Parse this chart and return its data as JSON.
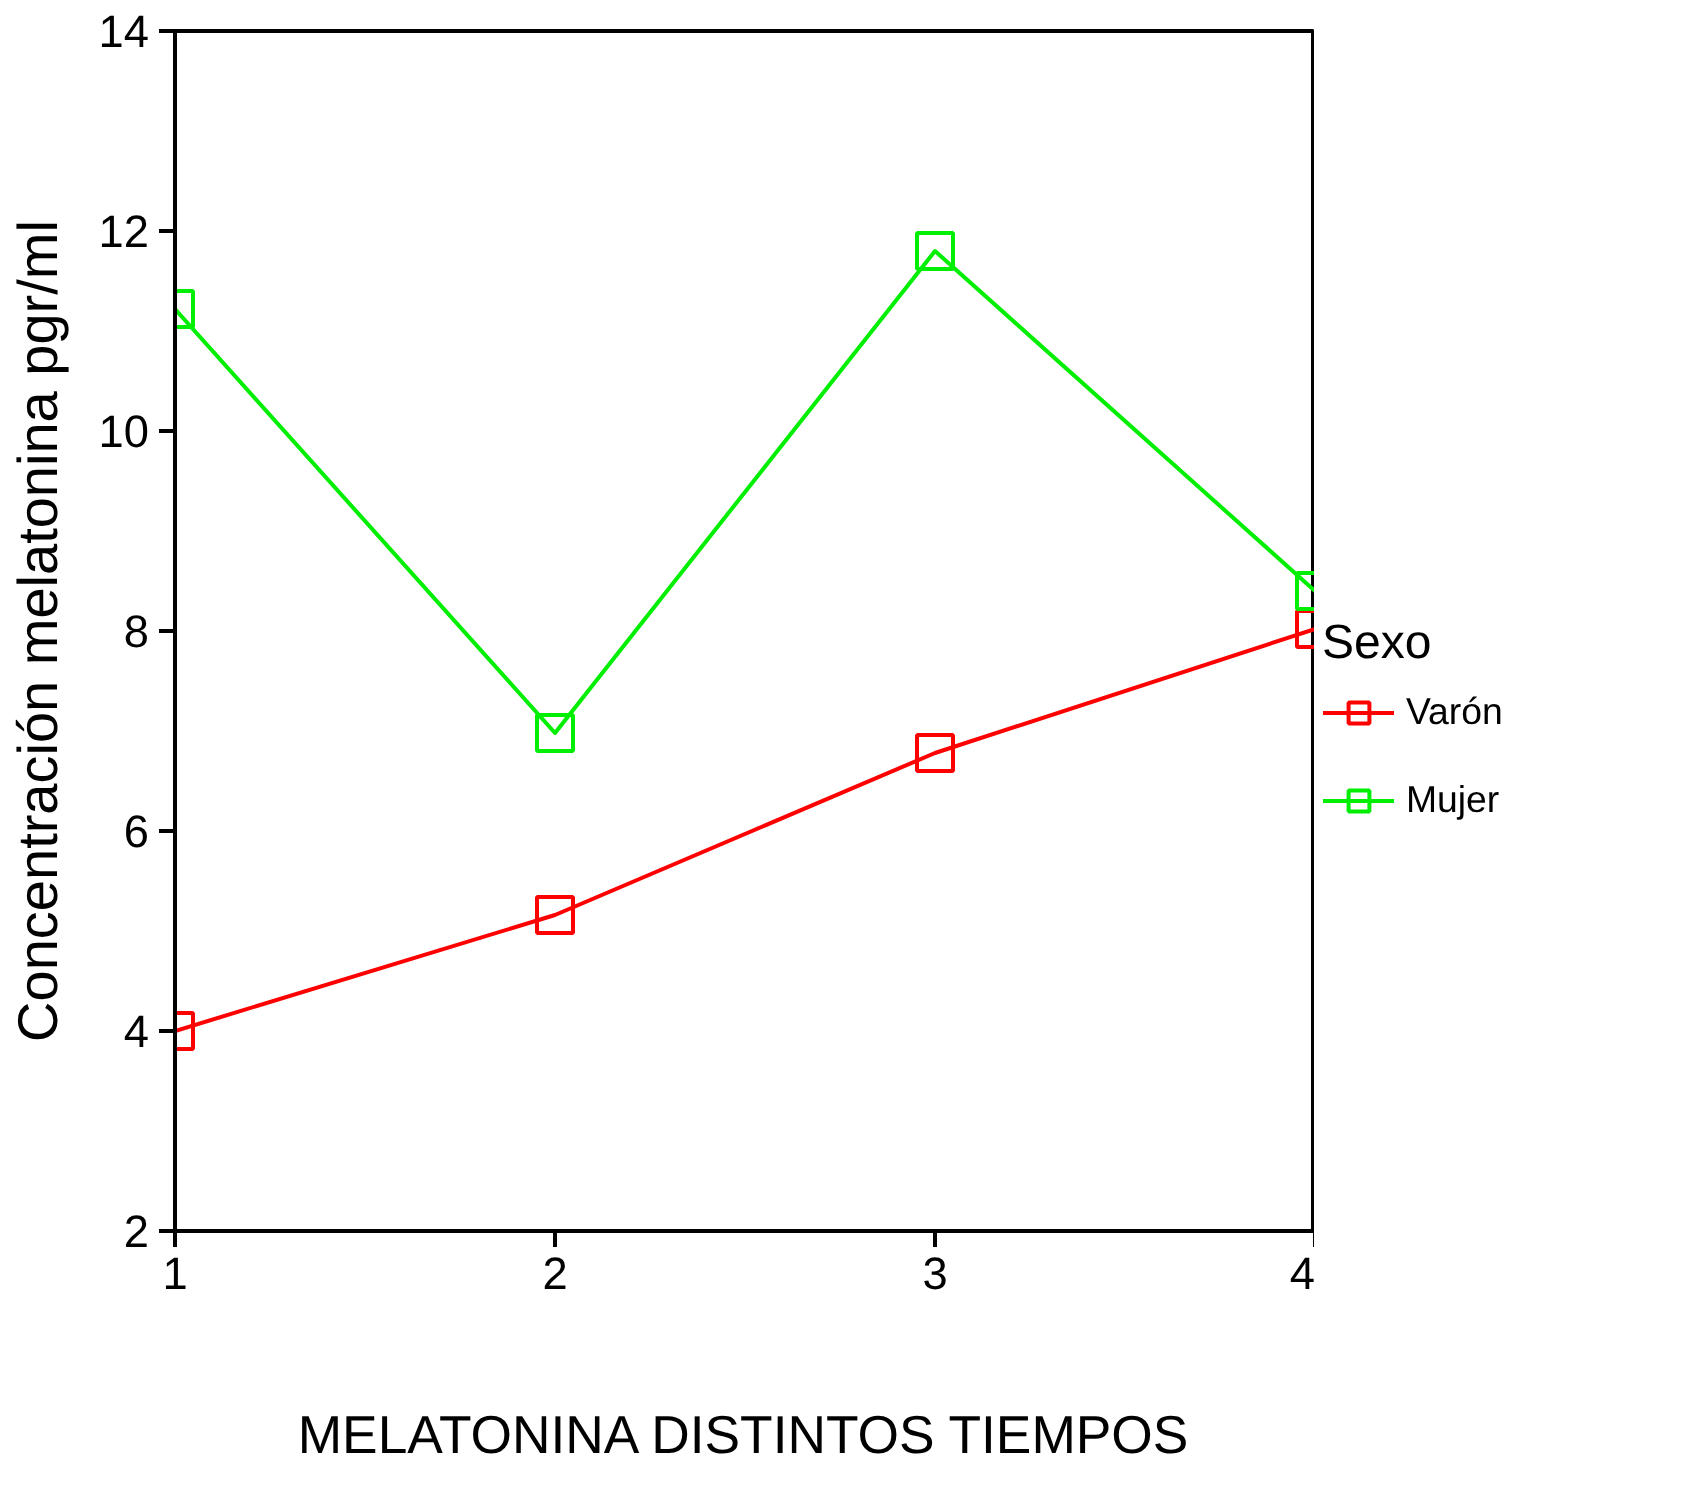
{
  "chart_data": {
    "type": "line",
    "xlabel": "MELATONINA DISTINTOS TIEMPOS",
    "ylabel": "Concentración melatonina pgr/ml",
    "legend_title": "Sexo",
    "x": [
      1,
      2,
      3,
      4
    ],
    "series": [
      {
        "name": "Varón",
        "color": "#ff0000",
        "values": [
          4.0,
          5.16,
          6.78,
          8.02
        ]
      },
      {
        "name": "Mujer",
        "color": "#00ee00",
        "values": [
          11.22,
          6.98,
          11.8,
          8.4
        ]
      }
    ],
    "xlim": [
      1,
      4
    ],
    "xticks": [
      1,
      2,
      3,
      4
    ],
    "ylim": [
      2,
      14
    ],
    "yticks": [
      2,
      4,
      6,
      8,
      10,
      12,
      14
    ],
    "grid": false,
    "legend": "right",
    "marker": "square",
    "line_style": "solid"
  }
}
